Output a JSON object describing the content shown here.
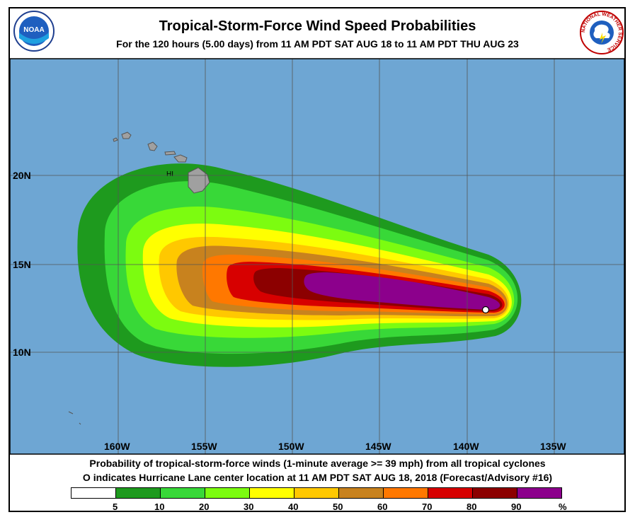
{
  "title": "Tropical-Storm-Force Wind Speed Probabilities",
  "subtitle": "For the 120 hours (5.00 days) from 11 AM PDT SAT AUG 18 to 11 AM PDT THU AUG 23",
  "map": {
    "land_label": "HI",
    "lat_labels": [
      "20N",
      "15N",
      "10N"
    ],
    "lon_labels": [
      "160W",
      "155W",
      "150W",
      "145W",
      "140W",
      "135W"
    ],
    "storm_center": {
      "lon": -138.8,
      "lat": 12.4
    }
  },
  "footer": {
    "line1": "Probability of tropical-storm-force winds (1-minute average >= 39 mph) from all tropical cyclones",
    "line2": "O indicates Hurricane Lane center location at 11 AM PDT SAT AUG 18, 2018 (Forecast/Advisory #16)"
  },
  "legend": {
    "labels": [
      "5",
      "10",
      "20",
      "30",
      "40",
      "50",
      "60",
      "70",
      "80",
      "90",
      "%"
    ],
    "colors": [
      "#ffffff",
      "#1e9a1e",
      "#38d838",
      "#7cfc10",
      "#ffff00",
      "#ffc800",
      "#c8821e",
      "#ff7800",
      "#d70000",
      "#8c0000",
      "#8c008c"
    ]
  },
  "colors": {
    "ocean": "#6ea6d3",
    "land": "#a0a0a0",
    "grid": "#555555"
  },
  "logos": {
    "noaa_text": "NOAA",
    "nws_text": "NATIONAL WEATHER SERVICE"
  }
}
